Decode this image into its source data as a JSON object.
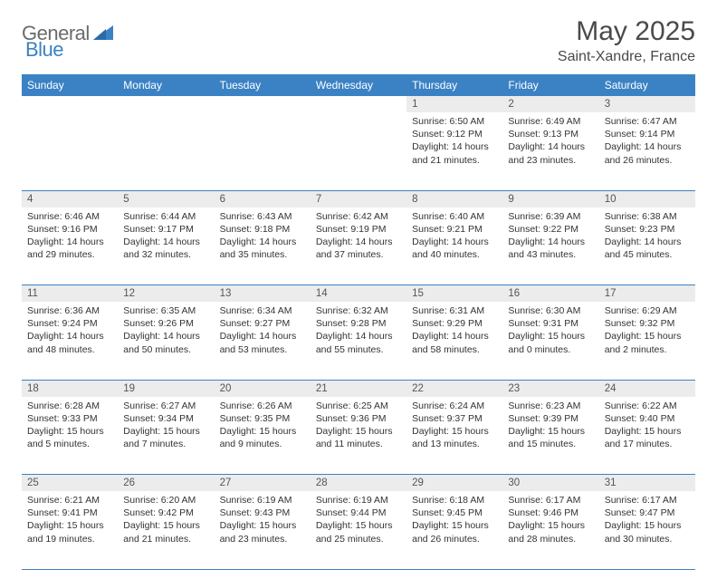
{
  "logo": {
    "text1": "General",
    "text2": "Blue"
  },
  "title": "May 2025",
  "location": "Saint-Xandre, France",
  "colors": {
    "header_bg": "#3b82c4",
    "header_text": "#ffffff",
    "daynum_bg": "#ececec",
    "body_text": "#333333",
    "row_border": "#3b82c4",
    "logo_gray": "#6b6b6b",
    "logo_blue": "#3b82c4"
  },
  "weekdays": [
    "Sunday",
    "Monday",
    "Tuesday",
    "Wednesday",
    "Thursday",
    "Friday",
    "Saturday"
  ],
  "weeks": [
    [
      null,
      null,
      null,
      null,
      {
        "day": "1",
        "sunrise": "6:50 AM",
        "sunset": "9:12 PM",
        "daylight": "14 hours and 21 minutes."
      },
      {
        "day": "2",
        "sunrise": "6:49 AM",
        "sunset": "9:13 PM",
        "daylight": "14 hours and 23 minutes."
      },
      {
        "day": "3",
        "sunrise": "6:47 AM",
        "sunset": "9:14 PM",
        "daylight": "14 hours and 26 minutes."
      }
    ],
    [
      {
        "day": "4",
        "sunrise": "6:46 AM",
        "sunset": "9:16 PM",
        "daylight": "14 hours and 29 minutes."
      },
      {
        "day": "5",
        "sunrise": "6:44 AM",
        "sunset": "9:17 PM",
        "daylight": "14 hours and 32 minutes."
      },
      {
        "day": "6",
        "sunrise": "6:43 AM",
        "sunset": "9:18 PM",
        "daylight": "14 hours and 35 minutes."
      },
      {
        "day": "7",
        "sunrise": "6:42 AM",
        "sunset": "9:19 PM",
        "daylight": "14 hours and 37 minutes."
      },
      {
        "day": "8",
        "sunrise": "6:40 AM",
        "sunset": "9:21 PM",
        "daylight": "14 hours and 40 minutes."
      },
      {
        "day": "9",
        "sunrise": "6:39 AM",
        "sunset": "9:22 PM",
        "daylight": "14 hours and 43 minutes."
      },
      {
        "day": "10",
        "sunrise": "6:38 AM",
        "sunset": "9:23 PM",
        "daylight": "14 hours and 45 minutes."
      }
    ],
    [
      {
        "day": "11",
        "sunrise": "6:36 AM",
        "sunset": "9:24 PM",
        "daylight": "14 hours and 48 minutes."
      },
      {
        "day": "12",
        "sunrise": "6:35 AM",
        "sunset": "9:26 PM",
        "daylight": "14 hours and 50 minutes."
      },
      {
        "day": "13",
        "sunrise": "6:34 AM",
        "sunset": "9:27 PM",
        "daylight": "14 hours and 53 minutes."
      },
      {
        "day": "14",
        "sunrise": "6:32 AM",
        "sunset": "9:28 PM",
        "daylight": "14 hours and 55 minutes."
      },
      {
        "day": "15",
        "sunrise": "6:31 AM",
        "sunset": "9:29 PM",
        "daylight": "14 hours and 58 minutes."
      },
      {
        "day": "16",
        "sunrise": "6:30 AM",
        "sunset": "9:31 PM",
        "daylight": "15 hours and 0 minutes."
      },
      {
        "day": "17",
        "sunrise": "6:29 AM",
        "sunset": "9:32 PM",
        "daylight": "15 hours and 2 minutes."
      }
    ],
    [
      {
        "day": "18",
        "sunrise": "6:28 AM",
        "sunset": "9:33 PM",
        "daylight": "15 hours and 5 minutes."
      },
      {
        "day": "19",
        "sunrise": "6:27 AM",
        "sunset": "9:34 PM",
        "daylight": "15 hours and 7 minutes."
      },
      {
        "day": "20",
        "sunrise": "6:26 AM",
        "sunset": "9:35 PM",
        "daylight": "15 hours and 9 minutes."
      },
      {
        "day": "21",
        "sunrise": "6:25 AM",
        "sunset": "9:36 PM",
        "daylight": "15 hours and 11 minutes."
      },
      {
        "day": "22",
        "sunrise": "6:24 AM",
        "sunset": "9:37 PM",
        "daylight": "15 hours and 13 minutes."
      },
      {
        "day": "23",
        "sunrise": "6:23 AM",
        "sunset": "9:39 PM",
        "daylight": "15 hours and 15 minutes."
      },
      {
        "day": "24",
        "sunrise": "6:22 AM",
        "sunset": "9:40 PM",
        "daylight": "15 hours and 17 minutes."
      }
    ],
    [
      {
        "day": "25",
        "sunrise": "6:21 AM",
        "sunset": "9:41 PM",
        "daylight": "15 hours and 19 minutes."
      },
      {
        "day": "26",
        "sunrise": "6:20 AM",
        "sunset": "9:42 PM",
        "daylight": "15 hours and 21 minutes."
      },
      {
        "day": "27",
        "sunrise": "6:19 AM",
        "sunset": "9:43 PM",
        "daylight": "15 hours and 23 minutes."
      },
      {
        "day": "28",
        "sunrise": "6:19 AM",
        "sunset": "9:44 PM",
        "daylight": "15 hours and 25 minutes."
      },
      {
        "day": "29",
        "sunrise": "6:18 AM",
        "sunset": "9:45 PM",
        "daylight": "15 hours and 26 minutes."
      },
      {
        "day": "30",
        "sunrise": "6:17 AM",
        "sunset": "9:46 PM",
        "daylight": "15 hours and 28 minutes."
      },
      {
        "day": "31",
        "sunrise": "6:17 AM",
        "sunset": "9:47 PM",
        "daylight": "15 hours and 30 minutes."
      }
    ]
  ],
  "labels": {
    "sunrise": "Sunrise:",
    "sunset": "Sunset:",
    "daylight": "Daylight:"
  }
}
